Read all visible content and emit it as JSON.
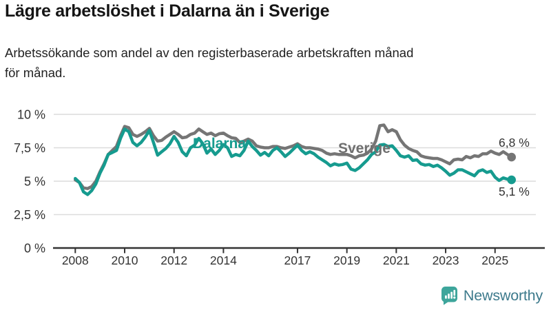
{
  "title": "Lägre arbetslöshet i Dalarna än i Sverige",
  "subtitle": "Arbetssökande som andel av den registerbaserade arbetskraften månad\nför månad.",
  "series_inline_labels": {
    "dalarna": "Dalarna",
    "sverige": "Sverige"
  },
  "end_value_labels": {
    "dalarna": "5,1 %",
    "sverige": "6,8 %"
  },
  "logo": {
    "text": "Newsworthy"
  },
  "colors": {
    "dalarna_line": "#169b8f",
    "sverige_line": "#757575",
    "dalarna_label": "#169b8f",
    "sverige_label": "#6f6f6f",
    "grid": "#dcdcdc",
    "axis": "#333333",
    "tick_text": "#333333",
    "value_text": "#333333",
    "logo_bubble": "#3da59b",
    "logo_text": "#3d7a8c"
  },
  "chart_data": {
    "type": "line",
    "title": "Lägre arbetslöshet i Dalarna än i Sverige",
    "subtitle": "Arbetssökande som andel av den registerbaserade arbetskraften månad för månad.",
    "xlabel": "",
    "ylabel": "",
    "unit": "%",
    "grid": "horizontal",
    "legend_position": "inline-labels",
    "x_start_year": 2008.0,
    "x_step_months": 2,
    "x_ticks": [
      2008,
      2010,
      2012,
      2014,
      2017,
      2019,
      2021,
      2023,
      2025
    ],
    "x_tick_labels": [
      "2008",
      "2010",
      "2012",
      "2014",
      "2017",
      "2019",
      "2021",
      "2023",
      "2025"
    ],
    "y_ticks": [
      0,
      2.5,
      5,
      7.5,
      10
    ],
    "y_tick_labels": [
      "0 %",
      "2,5 %",
      "5 %",
      "7,5 %",
      "10 %"
    ],
    "ylim": [
      0,
      10
    ],
    "xlim": [
      2007.1,
      2026.6
    ],
    "end_values": {
      "Sverige": 6.8,
      "Dalarna": 5.1
    },
    "series": [
      {
        "name": "Sverige",
        "color": "#757575",
        "values": [
          5.1,
          4.9,
          4.5,
          4.45,
          4.6,
          5.0,
          5.7,
          6.3,
          7.0,
          7.3,
          7.6,
          8.4,
          9.1,
          9.0,
          8.5,
          8.35,
          8.5,
          8.7,
          8.95,
          8.4,
          8.0,
          8.05,
          8.3,
          8.5,
          8.7,
          8.5,
          8.25,
          8.3,
          8.5,
          8.6,
          8.9,
          8.7,
          8.5,
          8.6,
          8.4,
          8.55,
          8.6,
          8.4,
          8.25,
          8.2,
          7.9,
          8.0,
          8.15,
          8.0,
          7.65,
          7.55,
          7.5,
          7.5,
          7.6,
          7.6,
          7.5,
          7.45,
          7.55,
          7.65,
          7.8,
          7.6,
          7.5,
          7.5,
          7.45,
          7.4,
          7.3,
          7.1,
          7.0,
          7.05,
          7.0,
          7.0,
          7.0,
          6.9,
          6.75,
          6.9,
          6.95,
          7.1,
          7.4,
          8.0,
          9.15,
          9.2,
          8.7,
          8.85,
          8.7,
          8.1,
          7.7,
          7.45,
          7.3,
          7.2,
          6.9,
          6.8,
          6.75,
          6.7,
          6.7,
          6.6,
          6.45,
          6.3,
          6.6,
          6.65,
          6.6,
          6.85,
          6.75,
          6.9,
          6.85,
          7.05,
          7.05,
          7.25,
          7.1,
          7.0,
          7.2,
          7.0,
          6.8
        ]
      },
      {
        "name": "Dalarna",
        "color": "#169b8f",
        "values": [
          5.2,
          4.9,
          4.2,
          4.0,
          4.3,
          4.8,
          5.6,
          6.2,
          7.0,
          7.15,
          7.3,
          8.2,
          8.9,
          8.7,
          7.9,
          7.65,
          7.9,
          8.3,
          8.8,
          7.9,
          6.95,
          7.2,
          7.45,
          7.8,
          8.35,
          7.9,
          7.2,
          6.9,
          7.5,
          7.7,
          8.2,
          7.8,
          7.1,
          7.4,
          7.0,
          7.3,
          7.75,
          7.5,
          6.85,
          7.0,
          6.9,
          7.3,
          8.0,
          7.6,
          7.3,
          6.95,
          7.15,
          6.9,
          7.3,
          7.5,
          7.2,
          6.85,
          7.1,
          7.4,
          7.7,
          7.3,
          7.05,
          7.2,
          7.05,
          6.8,
          6.6,
          6.4,
          6.15,
          6.3,
          6.2,
          6.25,
          6.35,
          5.9,
          5.8,
          6.0,
          6.3,
          6.6,
          7.0,
          7.2,
          7.7,
          7.75,
          7.6,
          7.65,
          7.3,
          6.9,
          6.8,
          6.9,
          6.55,
          6.6,
          6.3,
          6.2,
          6.25,
          6.1,
          6.2,
          6.0,
          5.75,
          5.45,
          5.6,
          5.85,
          5.85,
          5.7,
          5.55,
          5.4,
          5.75,
          5.85,
          5.65,
          5.75,
          5.3,
          5.05,
          5.25,
          5.15,
          5.1
        ]
      }
    ]
  }
}
